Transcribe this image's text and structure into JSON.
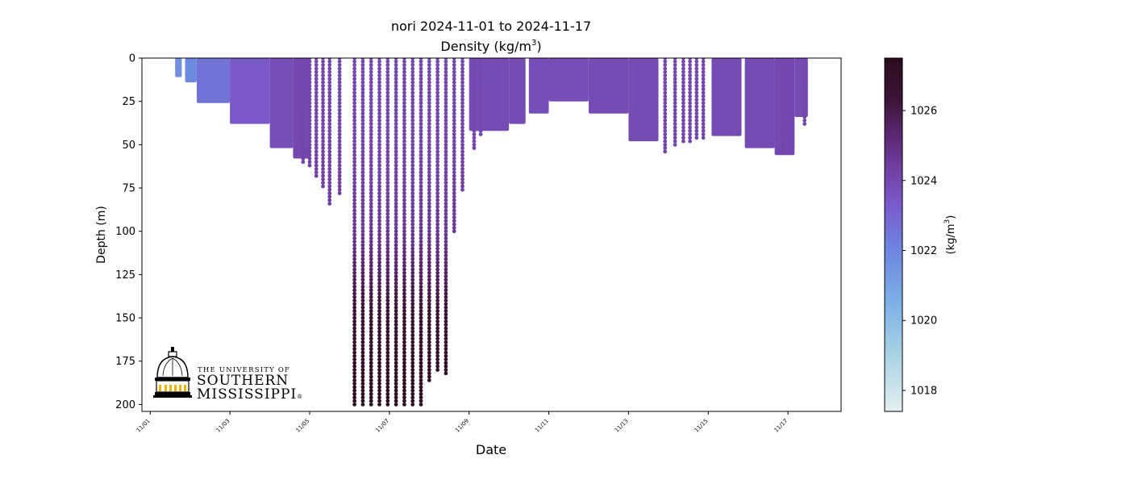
{
  "chart_data": {
    "type": "scatter",
    "title": "nori 2024-11-01 to 2024-11-17",
    "subtitle_prefix": "Density (kg/m",
    "subtitle_sup": "3",
    "subtitle_suffix": ")",
    "xlabel": "Date",
    "ylabel": "Depth (m)",
    "xlim": [
      "2024-10-31T19:00",
      "2024-11-18T08:00"
    ],
    "ylim": [
      204,
      0
    ],
    "y_inverted": true,
    "x_ticks": [
      {
        "date": "2024-11-01",
        "label": "11/01"
      },
      {
        "date": "2024-11-03",
        "label": "11/03"
      },
      {
        "date": "2024-11-05",
        "label": "11/05"
      },
      {
        "date": "2024-11-07",
        "label": "11/07"
      },
      {
        "date": "2024-11-09",
        "label": "11/09"
      },
      {
        "date": "2024-11-11",
        "label": "11/11"
      },
      {
        "date": "2024-11-13",
        "label": "11/13"
      },
      {
        "date": "2024-11-15",
        "label": "11/15"
      },
      {
        "date": "2024-11-17",
        "label": "11/17"
      }
    ],
    "y_ticks": [
      0,
      25,
      50,
      75,
      100,
      125,
      150,
      175,
      200
    ],
    "colorbar": {
      "label_prefix": "(kg/m",
      "label_sup": "3",
      "label_suffix": ")",
      "range": [
        1017.4,
        1027.5
      ],
      "ticks": [
        1018,
        1020,
        1022,
        1024,
        1026
      ],
      "colormap": [
        [
          1017.4,
          "#e4efef"
        ],
        [
          1019.0,
          "#a9d3e4"
        ],
        [
          1020.5,
          "#7fb0e6"
        ],
        [
          1022.0,
          "#6d86e0"
        ],
        [
          1023.3,
          "#7a5bcc"
        ],
        [
          1024.3,
          "#7140a4"
        ],
        [
          1025.2,
          "#5e2a78"
        ],
        [
          1026.3,
          "#3d1536"
        ],
        [
          1027.5,
          "#2a0c1e"
        ]
      ]
    },
    "shallow_profiles": [
      {
        "start": "2024-11-01T15:00",
        "end": "2024-11-01T19:00",
        "max_depth": 11,
        "density": 1021.7
      },
      {
        "start": "2024-11-01T21:00",
        "end": "2024-11-02T04:00",
        "max_depth": 14,
        "density": 1021.9
      },
      {
        "start": "2024-11-02T04:00",
        "end": "2024-11-03T00:00",
        "max_depth": 26,
        "density": 1022.6
      },
      {
        "start": "2024-11-03T00:00",
        "end": "2024-11-04T00:00",
        "max_depth": 38,
        "density": 1023.4
      },
      {
        "start": "2024-11-04T00:00",
        "end": "2024-11-04T14:00",
        "max_depth": 52,
        "density": 1023.8
      },
      {
        "start": "2024-11-04T14:00",
        "end": "2024-11-05T00:00",
        "max_depth": 58,
        "density": 1024.0
      },
      {
        "start": "2024-11-09T00:00",
        "end": "2024-11-10T00:00",
        "max_depth": 42,
        "density": 1023.9
      },
      {
        "start": "2024-11-10T00:00",
        "end": "2024-11-10T10:00",
        "max_depth": 38,
        "density": 1023.9
      },
      {
        "start": "2024-11-10T12:00",
        "end": "2024-11-11T00:00",
        "max_depth": 32,
        "density": 1023.8
      },
      {
        "start": "2024-11-11T00:00",
        "end": "2024-11-12T00:00",
        "max_depth": 25,
        "density": 1023.8
      },
      {
        "start": "2024-11-12T00:00",
        "end": "2024-11-13T00:00",
        "max_depth": 32,
        "density": 1023.9
      },
      {
        "start": "2024-11-13T00:00",
        "end": "2024-11-13T18:00",
        "max_depth": 48,
        "density": 1023.9
      },
      {
        "start": "2024-11-15T02:00",
        "end": "2024-11-15T20:00",
        "max_depth": 45,
        "density": 1023.9
      },
      {
        "start": "2024-11-15T22:00",
        "end": "2024-11-16T16:00",
        "max_depth": 52,
        "density": 1023.9
      },
      {
        "start": "2024-11-16T16:00",
        "end": "2024-11-17T04:00",
        "max_depth": 56,
        "density": 1024.0
      },
      {
        "start": "2024-11-17T04:00",
        "end": "2024-11-17T12:00",
        "max_depth": 34,
        "density": 1023.9
      }
    ],
    "deep_profiles": [
      {
        "time": "2024-11-04T20:00",
        "max_depth": 60
      },
      {
        "time": "2024-11-05T00:00",
        "max_depth": 62
      },
      {
        "time": "2024-11-05T04:00",
        "max_depth": 69
      },
      {
        "time": "2024-11-05T08:00",
        "max_depth": 75
      },
      {
        "time": "2024-11-05T12:00",
        "max_depth": 85
      },
      {
        "time": "2024-11-05T18:00",
        "max_depth": 78
      },
      {
        "time": "2024-11-06T03:00",
        "max_depth": 200
      },
      {
        "time": "2024-11-06T08:00",
        "max_depth": 200
      },
      {
        "time": "2024-11-06T13:00",
        "max_depth": 200
      },
      {
        "time": "2024-11-06T18:00",
        "max_depth": 200
      },
      {
        "time": "2024-11-06T23:00",
        "max_depth": 200
      },
      {
        "time": "2024-11-07T04:00",
        "max_depth": 200
      },
      {
        "time": "2024-11-07T09:00",
        "max_depth": 200
      },
      {
        "time": "2024-11-07T14:00",
        "max_depth": 200
      },
      {
        "time": "2024-11-07T19:00",
        "max_depth": 200
      },
      {
        "time": "2024-11-08T00:00",
        "max_depth": 186
      },
      {
        "time": "2024-11-08T05:00",
        "max_depth": 180
      },
      {
        "time": "2024-11-08T10:00",
        "max_depth": 183
      },
      {
        "time": "2024-11-08T15:00",
        "max_depth": 101
      },
      {
        "time": "2024-11-08T20:00",
        "max_depth": 77
      },
      {
        "time": "2024-11-09T03:00",
        "max_depth": 53
      },
      {
        "time": "2024-11-09T07:00",
        "max_depth": 45
      },
      {
        "time": "2024-11-13T22:00",
        "max_depth": 55
      },
      {
        "time": "2024-11-14T04:00",
        "max_depth": 50
      },
      {
        "time": "2024-11-14T09:00",
        "max_depth": 49
      },
      {
        "time": "2024-11-14T13:00",
        "max_depth": 48
      },
      {
        "time": "2024-11-14T17:00",
        "max_depth": 47
      },
      {
        "time": "2024-11-14T21:00",
        "max_depth": 46
      },
      {
        "time": "2024-11-16T21:00",
        "max_depth": 55
      },
      {
        "time": "2024-11-17T10:00",
        "max_depth": 38
      }
    ],
    "deep_density_profile": [
      [
        0,
        1024.0
      ],
      [
        50,
        1024.1
      ],
      [
        100,
        1024.6
      ],
      [
        125,
        1025.6
      ],
      [
        150,
        1026.5
      ],
      [
        200,
        1027.3
      ]
    ]
  },
  "logo": {
    "line1": "THE UNIVERSITY OF",
    "line2": "SOUTHERN",
    "line3": "MISSISSIPPI",
    "mark": "®"
  }
}
